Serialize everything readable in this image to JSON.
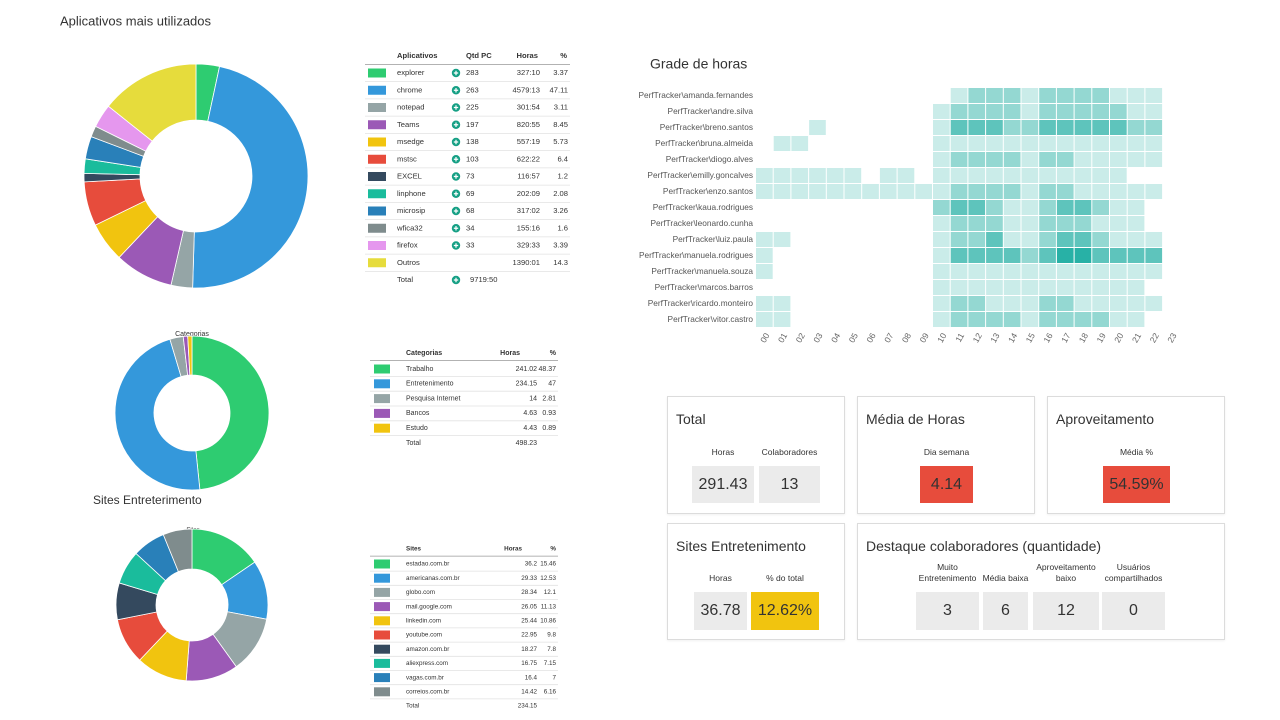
{
  "title": "Aplicativos mais utilizados",
  "section_title": "Sites Entreterimento",
  "chart_data": [
    {
      "type": "donut",
      "categories": [
        "explorer",
        "chrome",
        "notepad",
        "Teams",
        "msedge",
        "mstsc",
        "EXCEL",
        "linphone",
        "microsip",
        "wfica32",
        "firefox",
        "Outros"
      ],
      "values": [
        3.37,
        47.11,
        3.11,
        8.45,
        5.73,
        6.4,
        1.2,
        2.08,
        3.26,
        1.6,
        3.39,
        14.3
      ],
      "colors": [
        "#2ecc71",
        "#3498db",
        "#95a5a6",
        "#9b59b6",
        "#f1c40f",
        "#e74c3c",
        "#34495e",
        "#1abc9c",
        "#2980b9",
        "#7f8c8d",
        "#e597ee",
        "#e6dc3c"
      ]
    },
    {
      "type": "donut",
      "title": "Categorias",
      "categories": [
        "Trabalho",
        "Entretenimento",
        "Pesquisa Internet",
        "Bancos",
        "Estudo"
      ],
      "values": [
        48.37,
        47,
        2.81,
        0.93,
        0.89
      ],
      "colors": [
        "#2ecc71",
        "#3498db",
        "#95a5a6",
        "#9b59b6",
        "#f1c40f"
      ]
    },
    {
      "type": "donut",
      "title": "Sites",
      "categories": [
        "estadao.com.br",
        "americanas.com.br",
        "globo.com",
        "mail.google.com",
        "linkedin.com",
        "youtube.com",
        "amazon.com.br",
        "aliexpress.com",
        "vagas.com.br",
        "correios.com.br"
      ],
      "values": [
        15.46,
        12.53,
        12.1,
        11.13,
        10.86,
        9.8,
        7.8,
        7.15,
        7,
        6.16
      ],
      "colors": [
        "#2ecc71",
        "#3498db",
        "#95a5a6",
        "#9b59b6",
        "#f1c40f",
        "#e74c3c",
        "#34495e",
        "#1abc9c",
        "#2980b9",
        "#7f8c8d"
      ]
    },
    {
      "type": "heatmap",
      "title": "Grade de horas",
      "color": "#11a89c",
      "x": [
        "00",
        "01",
        "02",
        "03",
        "04",
        "05",
        "06",
        "07",
        "08",
        "09",
        "10",
        "11",
        "12",
        "13",
        "14",
        "15",
        "16",
        "17",
        "18",
        "19",
        "20",
        "21",
        "22",
        "23"
      ],
      "y": [
        "PerfTracker\\amanda.fernandes",
        "PerfTracker\\andre.silva",
        "PerfTracker\\breno.santos",
        "PerfTracker\\bruna.almeida",
        "PerfTracker\\diogo.alves",
        "PerfTracker\\emilly.goncalves",
        "PerfTracker\\enzo.santos",
        "PerfTracker\\kaua.rodrigues",
        "PerfTracker\\leonardo.cunha",
        "PerfTracker\\luiz.paula",
        "PerfTracker\\manuela.rodrigues",
        "PerfTracker\\manuela.souza",
        "PerfTracker\\marcos.barros",
        "PerfTracker\\ricardo.monteiro",
        "PerfTracker\\vitor.castro"
      ],
      "values": [
        [
          0,
          0,
          0,
          0,
          0,
          0,
          0,
          0,
          0,
          0,
          0,
          1,
          2,
          2,
          2,
          1,
          2,
          2,
          2,
          2,
          1,
          1,
          1,
          0
        ],
        [
          0,
          0,
          0,
          0,
          0,
          0,
          0,
          0,
          0,
          0,
          1,
          2,
          2,
          2,
          2,
          1,
          2,
          2,
          2,
          2,
          2,
          1,
          1,
          0
        ],
        [
          0,
          0,
          0,
          1,
          0,
          0,
          0,
          0,
          0,
          0,
          1,
          3,
          3,
          3,
          2,
          2,
          3,
          3,
          3,
          3,
          3,
          2,
          2,
          0
        ],
        [
          0,
          1,
          1,
          0,
          0,
          0,
          0,
          0,
          0,
          0,
          1,
          1,
          1,
          1,
          1,
          1,
          1,
          1,
          1,
          1,
          1,
          1,
          1,
          0
        ],
        [
          0,
          0,
          0,
          0,
          0,
          0,
          0,
          0,
          0,
          0,
          1,
          2,
          2,
          2,
          2,
          1,
          2,
          2,
          1,
          1,
          1,
          1,
          1,
          0
        ],
        [
          1,
          1,
          1,
          1,
          1,
          1,
          0,
          1,
          1,
          0,
          1,
          1,
          1,
          1,
          1,
          1,
          1,
          1,
          1,
          1,
          1,
          0,
          0,
          0
        ],
        [
          1,
          1,
          1,
          1,
          1,
          1,
          1,
          1,
          1,
          1,
          1,
          2,
          2,
          2,
          2,
          1,
          2,
          2,
          1,
          1,
          1,
          1,
          1,
          0
        ],
        [
          0,
          0,
          0,
          0,
          0,
          0,
          0,
          0,
          0,
          0,
          2,
          3,
          3,
          2,
          1,
          1,
          2,
          3,
          3,
          2,
          1,
          1,
          0,
          0
        ],
        [
          0,
          0,
          0,
          0,
          0,
          0,
          0,
          0,
          0,
          0,
          1,
          2,
          2,
          2,
          1,
          1,
          2,
          2,
          2,
          1,
          1,
          1,
          0,
          0
        ],
        [
          1,
          1,
          0,
          0,
          0,
          0,
          0,
          0,
          0,
          0,
          1,
          2,
          2,
          3,
          1,
          1,
          2,
          3,
          3,
          2,
          1,
          1,
          1,
          0
        ],
        [
          1,
          0,
          0,
          0,
          0,
          0,
          0,
          0,
          0,
          0,
          1,
          3,
          3,
          3,
          3,
          2,
          3,
          4,
          4,
          3,
          3,
          3,
          3,
          0
        ],
        [
          1,
          0,
          0,
          0,
          0,
          0,
          0,
          0,
          0,
          0,
          1,
          1,
          1,
          1,
          1,
          1,
          1,
          1,
          1,
          1,
          1,
          1,
          1,
          0
        ],
        [
          0,
          0,
          0,
          0,
          0,
          0,
          0,
          0,
          0,
          0,
          1,
          1,
          1,
          1,
          1,
          1,
          1,
          1,
          1,
          1,
          1,
          1,
          0,
          0
        ],
        [
          1,
          1,
          0,
          0,
          0,
          0,
          0,
          0,
          0,
          0,
          1,
          2,
          2,
          1,
          1,
          1,
          2,
          2,
          1,
          1,
          1,
          1,
          1,
          0
        ],
        [
          1,
          1,
          0,
          0,
          0,
          0,
          0,
          0,
          0,
          0,
          1,
          2,
          2,
          2,
          2,
          1,
          2,
          2,
          2,
          2,
          1,
          1,
          0,
          0
        ]
      ]
    }
  ],
  "tables": [
    {
      "headers": [
        "Aplicativos",
        "Qtd PC",
        "Horas",
        "%"
      ],
      "qtd_pc": [
        283,
        263,
        225,
        197,
        138,
        103,
        73,
        69,
        68,
        34,
        33
      ],
      "horas": [
        "327:10",
        "4579:13",
        "301:54",
        "820:55",
        "557:19",
        "622:22",
        "116:57",
        "202:09",
        "317:02",
        "155:16",
        "329:33",
        "1390:01"
      ],
      "total_label": "Total",
      "total_horas": "9719:50"
    },
    {
      "headers": [
        "Categorias",
        "Horas",
        "%"
      ],
      "horas": [
        "241.02",
        "234.15",
        "14",
        "4.63",
        "4.43"
      ],
      "total_label": "Total",
      "total_horas": "498.23"
    },
    {
      "headers": [
        "Sites",
        "Horas",
        "%"
      ],
      "horas": [
        "36.2",
        "29.33",
        "28.34",
        "26.05",
        "25.44",
        "22.95",
        "18.27",
        "16.75",
        "16.4",
        "14.42"
      ],
      "total_label": "Total",
      "total_horas": "234.15"
    }
  ],
  "cards": [
    {
      "title": "Total",
      "items": [
        {
          "label": "Horas",
          "value": "291.43"
        },
        {
          "label": "Colaboradores",
          "value": "13"
        }
      ]
    },
    {
      "title": "Média de Horas",
      "items": [
        {
          "label": "Dia semana",
          "value": "4.14",
          "color": "#e74c3c"
        }
      ]
    },
    {
      "title": "Aproveitamento",
      "items": [
        {
          "label": "Média %",
          "value": "54.59%",
          "color": "#e74c3c"
        }
      ]
    },
    {
      "title": "Sites Entretenimento",
      "items": [
        {
          "label": "Horas",
          "value": "36.78"
        },
        {
          "label": "% do total",
          "value": "12.62%",
          "color": "#f1c40f"
        }
      ]
    },
    {
      "title": "Destaque colaboradores (quantidade)",
      "items": [
        {
          "label": "Muito Entretenimento",
          "value": "3"
        },
        {
          "label": "Média baixa",
          "value": "6"
        },
        {
          "label": "Aproveitamento baixo",
          "value": "12"
        },
        {
          "label": "Usuários compartilhados",
          "value": "0"
        }
      ]
    }
  ]
}
